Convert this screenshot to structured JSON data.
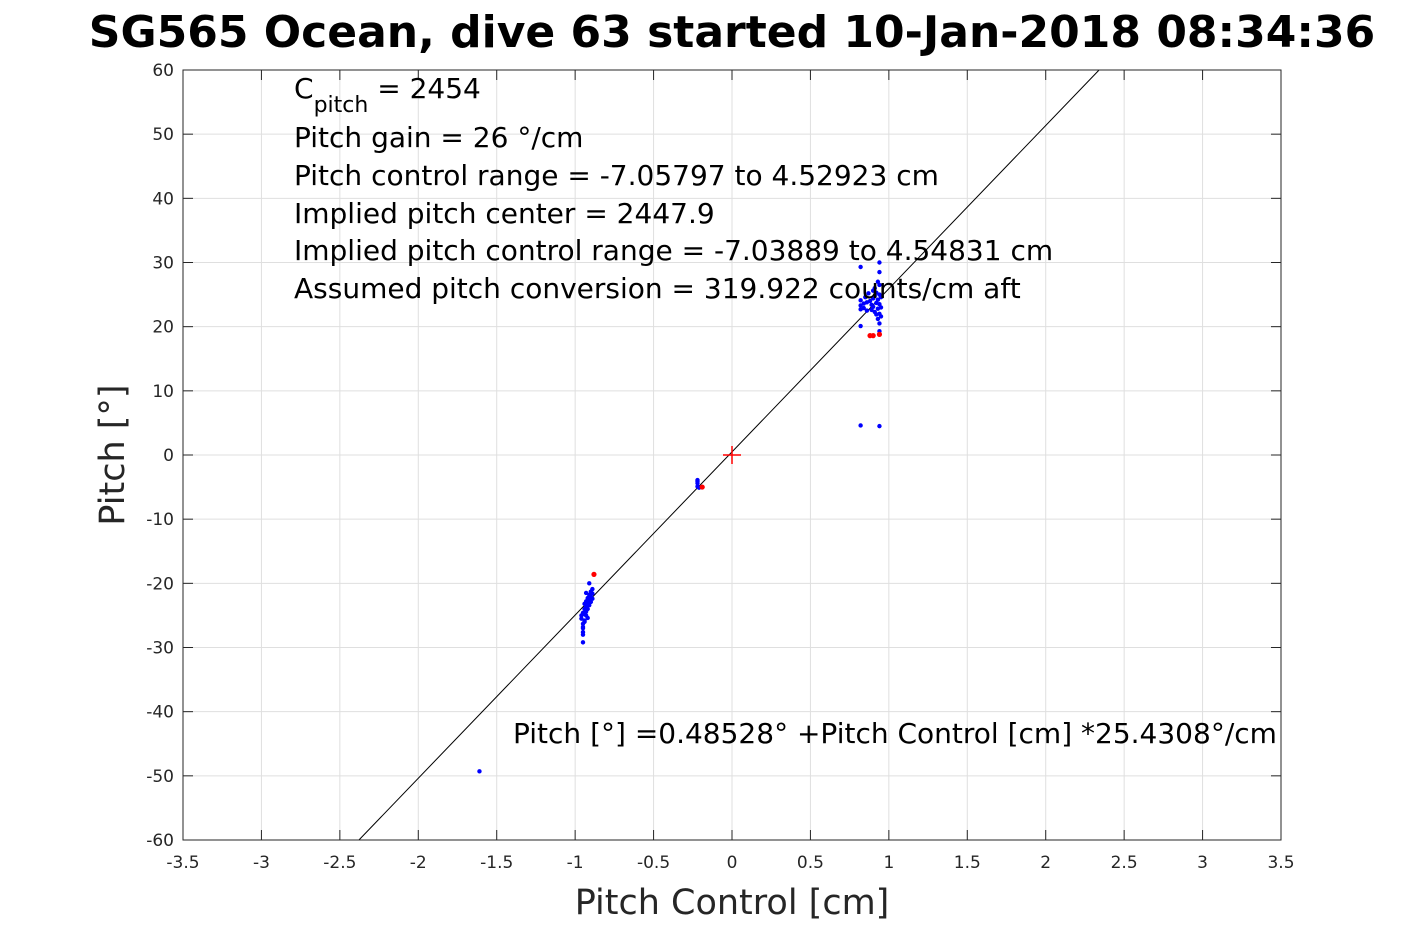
{
  "chart_data": {
    "type": "scatter",
    "title": "SG565 Ocean, dive 63 started 10-Jan-2018 08:34:36",
    "xlabel": "Pitch Control [cm]",
    "ylabel": "Pitch [°]",
    "xlim": [
      -3.5,
      3.5
    ],
    "ylim": [
      -60,
      60
    ],
    "xticks": [
      -3.5,
      -3,
      -2.5,
      -2,
      -1.5,
      -1,
      -0.5,
      0,
      0.5,
      1,
      1.5,
      2,
      2.5,
      3,
      3.5
    ],
    "xtick_labels": [
      "-3.5",
      "-3",
      "-2.5",
      "-2",
      "-1.5",
      "-1",
      "-0.5",
      "0",
      "0.5",
      "1",
      "1.5",
      "2",
      "2.5",
      "3",
      "3.5"
    ],
    "yticks": [
      -60,
      -50,
      -40,
      -30,
      -20,
      -10,
      0,
      10,
      20,
      30,
      40,
      50,
      60
    ],
    "ytick_labels": [
      "-60",
      "-50",
      "-40",
      "-30",
      "-20",
      "-10",
      "0",
      "10",
      "20",
      "30",
      "40",
      "50",
      "60"
    ],
    "grid": true,
    "fit_line": {
      "intercept": 0.48528,
      "slope": 25.4308,
      "color": "#000000"
    },
    "center_marker": {
      "x": 0,
      "y": 0,
      "color": "#ff0000"
    },
    "series": [
      {
        "color": "#0000ff",
        "points": [
          [
            -1.61,
            -49.3
          ],
          [
            -0.95,
            -29.2
          ],
          [
            -0.95,
            -28.0
          ],
          [
            -0.95,
            -27.0
          ],
          [
            -0.95,
            -26.3
          ],
          [
            -0.96,
            -25.5
          ],
          [
            -0.96,
            -25.0
          ],
          [
            -0.95,
            -24.6
          ],
          [
            -0.94,
            -25.8
          ],
          [
            -0.94,
            -24.8
          ],
          [
            -0.94,
            -24.0
          ],
          [
            -0.94,
            -23.2
          ],
          [
            -0.93,
            -24.4
          ],
          [
            -0.93,
            -23.6
          ],
          [
            -0.93,
            -22.8
          ],
          [
            -0.92,
            -24.0
          ],
          [
            -0.92,
            -23.0
          ],
          [
            -0.92,
            -22.3
          ],
          [
            -0.91,
            -23.4
          ],
          [
            -0.91,
            -22.6
          ],
          [
            -0.91,
            -21.8
          ],
          [
            -0.9,
            -22.9
          ],
          [
            -0.9,
            -22.1
          ],
          [
            -0.9,
            -21.3
          ],
          [
            -0.89,
            -22.4
          ],
          [
            -0.89,
            -21.6
          ],
          [
            -0.89,
            -20.9
          ],
          [
            -0.91,
            -20.0
          ],
          [
            -0.93,
            -21.5
          ],
          [
            -0.95,
            -27.6
          ],
          [
            -0.95,
            -26.8
          ],
          [
            -0.94,
            -26.0
          ],
          [
            -0.93,
            -25.0
          ],
          [
            -0.92,
            -25.4
          ],
          [
            -0.22,
            -3.9
          ],
          [
            -0.22,
            -4.4
          ],
          [
            -0.22,
            -4.9
          ],
          [
            -0.21,
            -5.1
          ],
          [
            -0.22,
            -4.1
          ],
          [
            0.82,
            29.3
          ],
          [
            0.82,
            24.1
          ],
          [
            0.82,
            23.3
          ],
          [
            0.82,
            22.7
          ],
          [
            0.82,
            20.1
          ],
          [
            0.82,
            4.6
          ],
          [
            0.84,
            23.6
          ],
          [
            0.84,
            22.9
          ],
          [
            0.85,
            24.6
          ],
          [
            0.86,
            23.8
          ],
          [
            0.86,
            22.5
          ],
          [
            0.87,
            25.2
          ],
          [
            0.88,
            24.0
          ],
          [
            0.89,
            23.4
          ],
          [
            0.89,
            22.6
          ],
          [
            0.9,
            25.6
          ],
          [
            0.9,
            24.4
          ],
          [
            0.9,
            23.1
          ],
          [
            0.91,
            26.0
          ],
          [
            0.91,
            24.8
          ],
          [
            0.91,
            22.3
          ],
          [
            0.92,
            25.3
          ],
          [
            0.92,
            23.7
          ],
          [
            0.92,
            21.9
          ],
          [
            0.93,
            27.0
          ],
          [
            0.93,
            24.2
          ],
          [
            0.93,
            22.8
          ],
          [
            0.93,
            21.2
          ],
          [
            0.94,
            30.0
          ],
          [
            0.94,
            28.5
          ],
          [
            0.94,
            26.5
          ],
          [
            0.94,
            25.0
          ],
          [
            0.94,
            23.5
          ],
          [
            0.94,
            22.0
          ],
          [
            0.94,
            20.5
          ],
          [
            0.94,
            19.3
          ],
          [
            0.95,
            24.6
          ],
          [
            0.95,
            23.0
          ],
          [
            0.95,
            21.6
          ],
          [
            0.94,
            4.5
          ]
        ]
      },
      {
        "color": "#ff0000",
        "points": [
          [
            -0.88,
            -18.6
          ],
          [
            -0.19,
            -5.0
          ],
          [
            0.88,
            18.6
          ],
          [
            0.9,
            18.6
          ],
          [
            0.94,
            18.8
          ]
        ]
      }
    ],
    "annotations": {
      "c_pitch_label": "C",
      "c_pitch_sub": "pitch",
      "c_pitch_value": " = 2454",
      "line2": "Pitch gain = 26 °/cm",
      "line3": "Pitch control range = -7.05797 to 4.52923 cm",
      "line4": "Implied pitch center = 2447.9",
      "line5": "Implied pitch control range = -7.03889 to 4.54831 cm",
      "line6": "Assumed pitch conversion = 319.922 counts/cm aft",
      "fit_equation": "Pitch [°] =0.48528° +Pitch Control [cm] *25.4308°/cm"
    }
  }
}
